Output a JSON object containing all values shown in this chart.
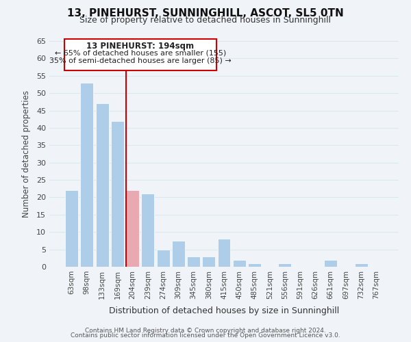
{
  "title": "13, PINEHURST, SUNNINGHILL, ASCOT, SL5 0TN",
  "subtitle": "Size of property relative to detached houses in Sunninghill",
  "xlabel": "Distribution of detached houses by size in Sunninghill",
  "ylabel": "Number of detached properties",
  "footer_line1": "Contains HM Land Registry data © Crown copyright and database right 2024.",
  "footer_line2": "Contains public sector information licensed under the Open Government Licence v3.0.",
  "bar_labels": [
    "63sqm",
    "98sqm",
    "133sqm",
    "169sqm",
    "204sqm",
    "239sqm",
    "274sqm",
    "309sqm",
    "345sqm",
    "380sqm",
    "415sqm",
    "450sqm",
    "485sqm",
    "521sqm",
    "556sqm",
    "591sqm",
    "626sqm",
    "661sqm",
    "697sqm",
    "732sqm",
    "767sqm"
  ],
  "bar_values": [
    22,
    53,
    47,
    42,
    22,
    21,
    5,
    7.5,
    3,
    3,
    8,
    2,
    1,
    0,
    1,
    0,
    0,
    2,
    0,
    1,
    0
  ],
  "bar_color_left": "#aecde8",
  "bar_color_highlight": "#e8aab0",
  "highlight_index": 4,
  "ylim": [
    0,
    65
  ],
  "yticks": [
    0,
    5,
    10,
    15,
    20,
    25,
    30,
    35,
    40,
    45,
    50,
    55,
    60,
    65
  ],
  "annotation_title": "13 PINEHURST: 194sqm",
  "annotation_line1": "← 65% of detached houses are smaller (155)",
  "annotation_line2": "35% of semi-detached houses are larger (85) →",
  "annotation_box_color": "#ffffff",
  "annotation_box_edge": "#cc0000",
  "grid_color": "#dce8f0",
  "background_color": "#f0f4f8"
}
